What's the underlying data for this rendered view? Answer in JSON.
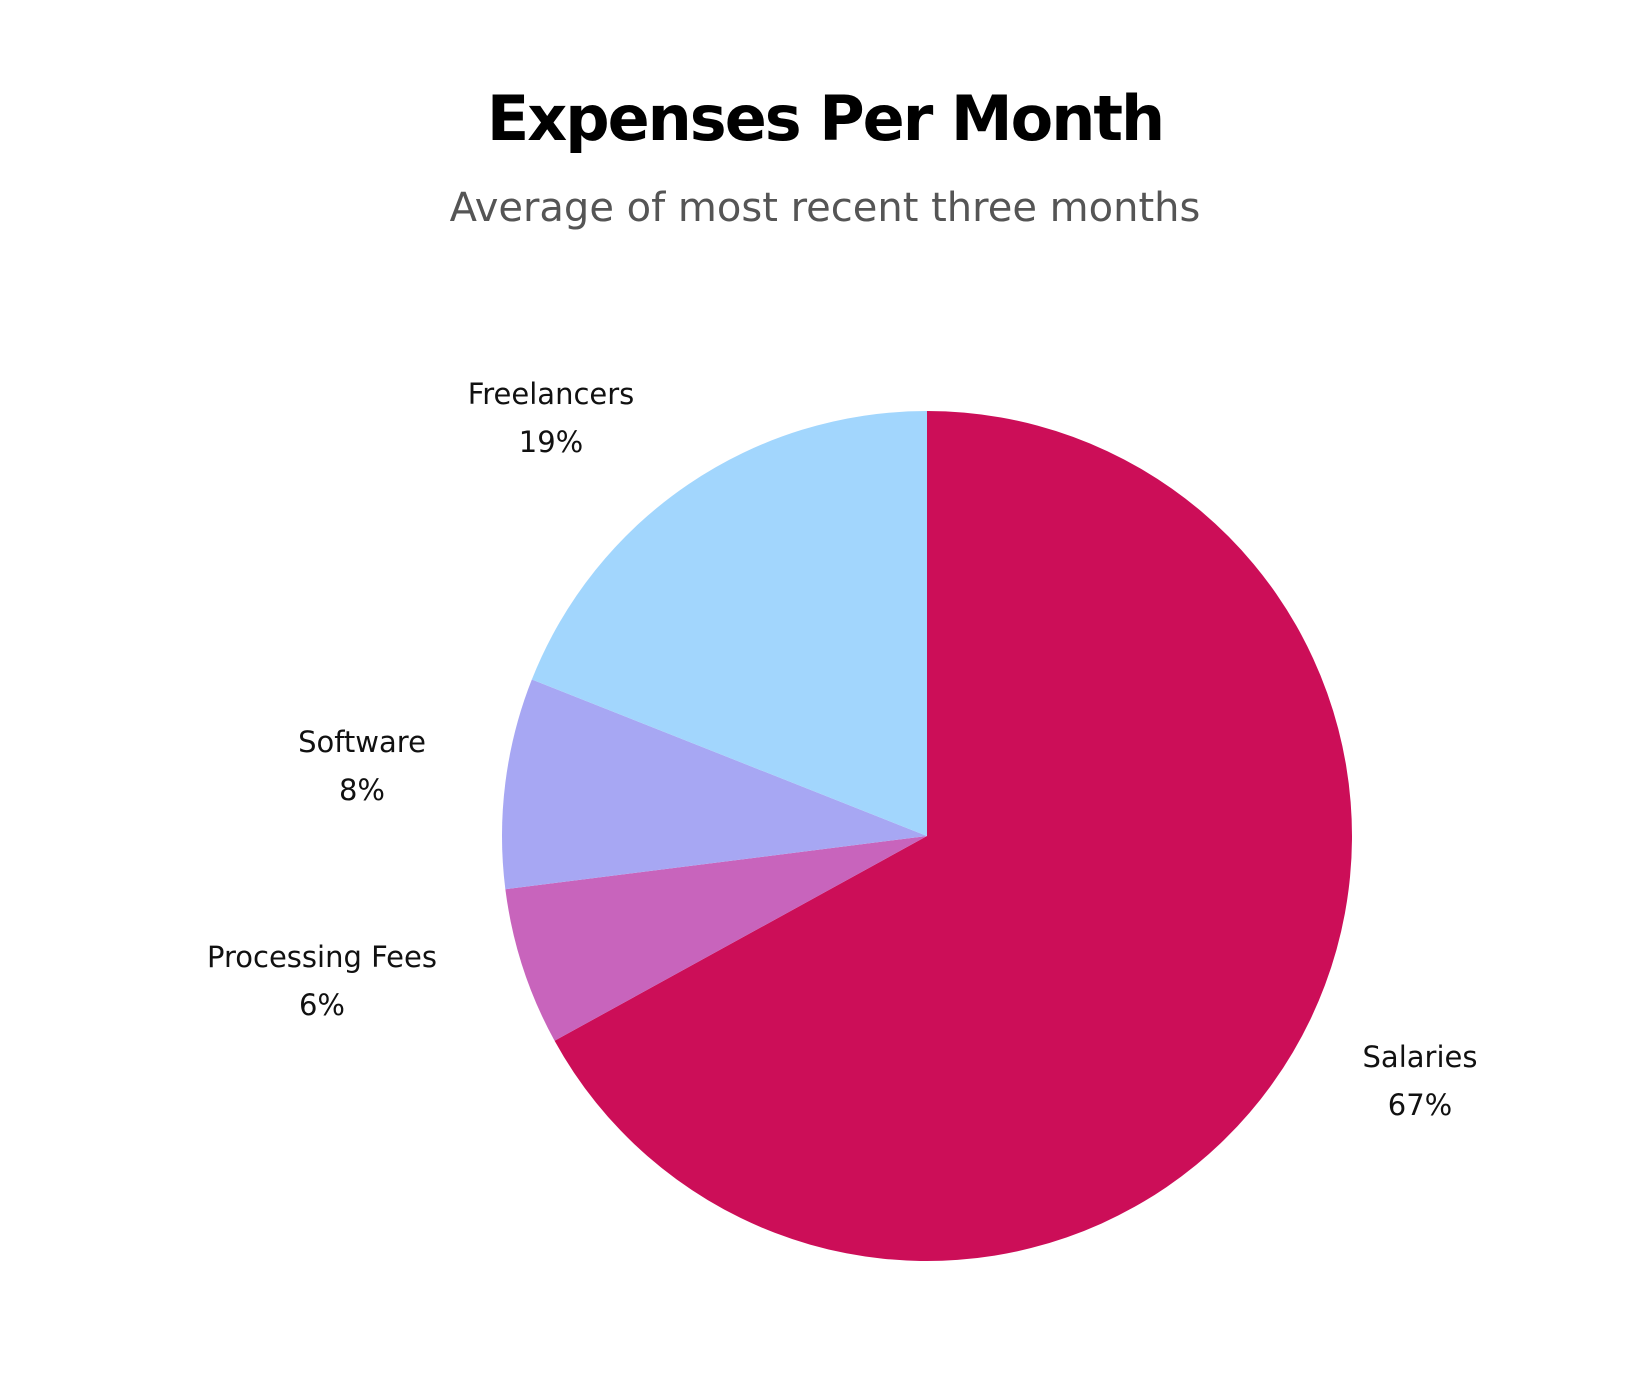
{
  "title": "Expenses Per Month",
  "subtitle": "Average of most recent three months",
  "chart_data": {
    "type": "pie",
    "title": "Expenses Per Month",
    "subtitle": "Average of most recent three months",
    "start": "top",
    "direction": "clockwise",
    "slices": [
      {
        "label": "Salaries",
        "value": 67,
        "display": "67%",
        "color": "#CC0E58"
      },
      {
        "label": "Processing Fees",
        "value": 6,
        "display": "6%",
        "color": "#C864BC"
      },
      {
        "label": "Software",
        "value": 8,
        "display": "8%",
        "color": "#A7A7F3"
      },
      {
        "label": "Freelancers",
        "value": 19,
        "display": "19%",
        "color": "#A2D6FD"
      }
    ]
  }
}
